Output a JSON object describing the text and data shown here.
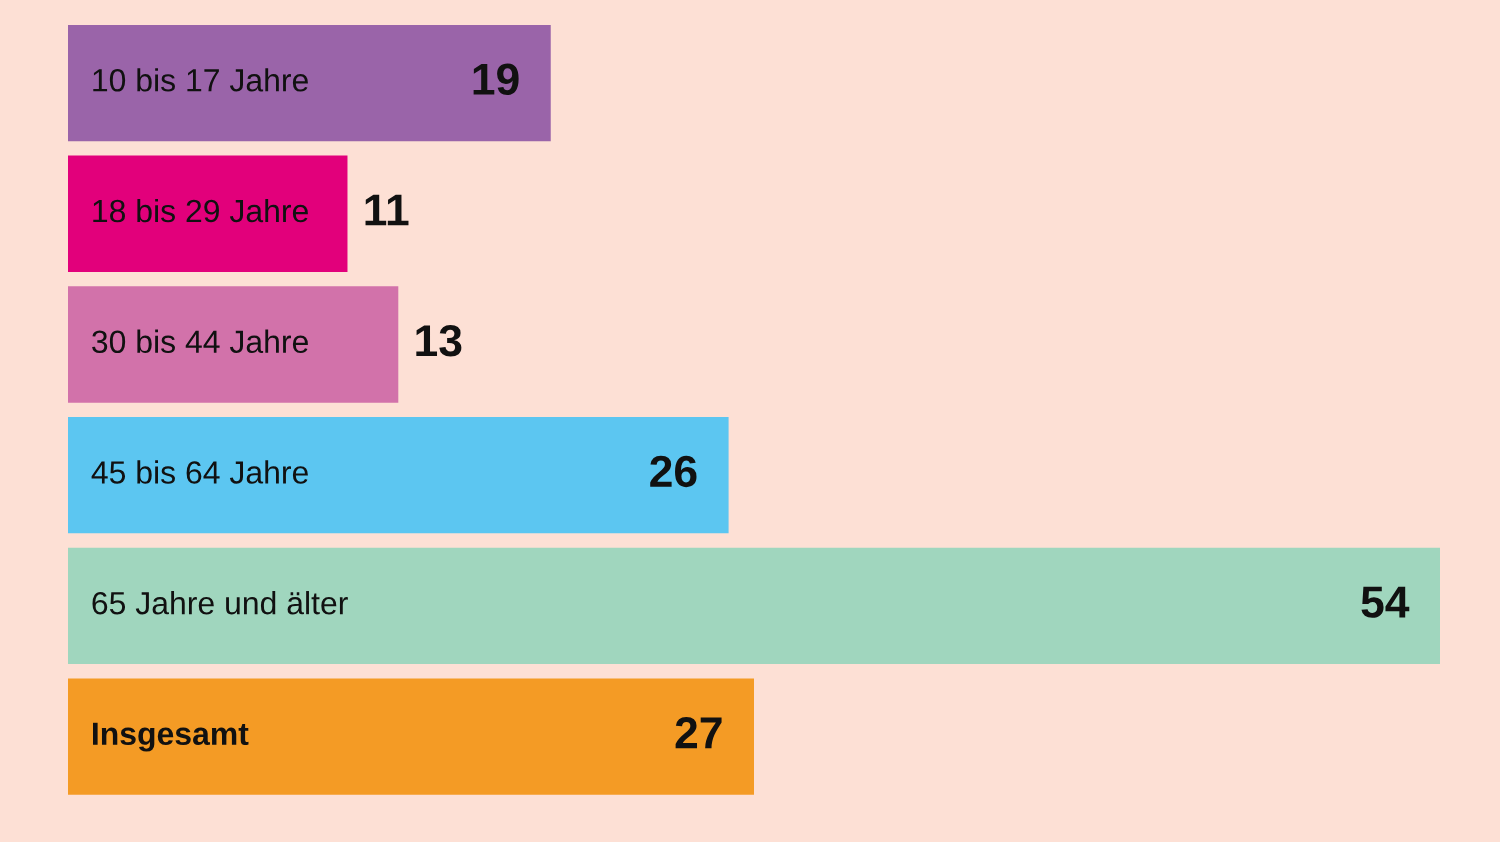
{
  "chart_data": {
    "type": "bar",
    "orientation": "horizontal",
    "data_labels": true,
    "categories": [
      "10 bis 17 Jahre",
      "18 bis 29 Jahre",
      "30 bis 44 Jahre",
      "45 bis 64 Jahre",
      "65 Jahre und älter",
      "Insgesamt"
    ],
    "values": [
      19,
      11,
      13,
      26,
      54,
      27
    ],
    "colors": [
      "#9a64a9",
      "#e2007b",
      "#d272aa",
      "#5cc6f1",
      "#a0d6be",
      "#f49b25"
    ]
  }
}
